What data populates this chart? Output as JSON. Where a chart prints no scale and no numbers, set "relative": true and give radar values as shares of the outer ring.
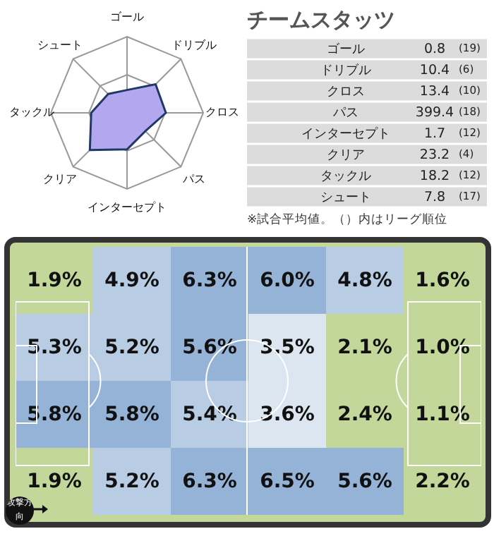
{
  "chart_data": [
    {
      "type": "radar",
      "relative": true,
      "grid": true,
      "categories": [
        "ゴール",
        "ドリブル",
        "クロス",
        "パス",
        "インターセプト",
        "クリア",
        "タックル",
        "シュート"
      ],
      "series": [
        {
          "color": "#b3a8f0",
          "values": [
            0.3,
            0.53,
            0.51,
            0.34,
            0.48,
            0.69,
            0.47,
            0.35
          ]
        }
      ]
    },
    {
      "type": "other",
      "title": "チームスタッツ",
      "categories": [
        "ゴール",
        "ドリブル",
        "クロス",
        "パス",
        "インターセプト",
        "クリア",
        "タックル",
        "シュート"
      ],
      "series": [
        {
          "values": [
            0.8,
            10.4,
            13.4,
            399.4,
            1.7,
            23.2,
            18.2,
            7.8
          ]
        },
        {
          "values": [
            19,
            6,
            10,
            18,
            12,
            4,
            12,
            17
          ],
          "value_labels": [
            "(19)",
            "(6)",
            "(10)",
            "(18)",
            "(12)",
            "(4)",
            "(12)",
            "(17)"
          ]
        }
      ],
      "data_labels": true,
      "annotations": [
        "※試合平均値。（）内はリーグ順位"
      ]
    },
    {
      "type": "heatmap",
      "categories": [
        null,
        null,
        null,
        null,
        null,
        null
      ],
      "y_categories": [
        null,
        null,
        null,
        null
      ],
      "cells": [
        [
          1.9,
          4.9,
          6.3,
          6.0,
          4.8,
          1.6
        ],
        [
          5.3,
          5.2,
          5.6,
          3.5,
          2.1,
          1.0
        ],
        [
          5.8,
          5.8,
          5.4,
          3.6,
          2.4,
          1.1
        ],
        [
          1.9,
          5.2,
          6.3,
          6.5,
          5.6,
          2.2
        ]
      ],
      "cell_labels": [
        [
          "1.9%",
          "4.9%",
          "6.3%",
          "6.0%",
          "4.8%",
          "1.6%"
        ],
        [
          "5.3%",
          "5.2%",
          "5.6%",
          "3.5%",
          "2.1%",
          "1.0%"
        ],
        [
          "5.8%",
          "5.8%",
          "5.4%",
          "3.6%",
          "2.4%",
          "1.1%"
        ],
        [
          "1.9%",
          "5.2%",
          "6.3%",
          "6.5%",
          "5.6%",
          "2.2%"
        ]
      ],
      "colors": [
        "#c4d79b",
        "#b8cce4",
        "#95b3d7",
        "#95b3d7",
        "#b8cce4",
        "#c4d79b",
        "#b8cce4",
        "#b8cce4",
        "#95b3d7",
        "#dce6f1",
        "#c4d79b",
        "#c4d79b",
        "#95b3d7",
        "#95b3d7",
        "#b8cce4",
        "#dce6f1",
        "#c4d79b",
        "#c4d79b",
        "#c4d79b",
        "#b8cce4",
        "#95b3d7",
        "#95b3d7",
        "#95b3d7",
        "#c4d79b"
      ],
      "annotations": [
        "攻撃方向"
      ]
    }
  ]
}
